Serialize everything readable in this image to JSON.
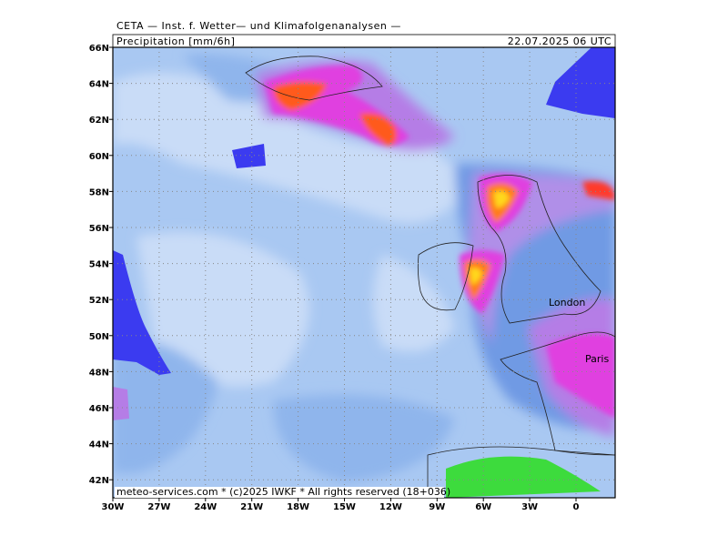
{
  "header": {
    "title": "CETA — Inst. f. Wetter— und Klimafolgenanalysen —",
    "parameter": "Precipitation [mm/6h]",
    "valid_time": "22.07.2025 06 UTC"
  },
  "map": {
    "lat_labels": [
      "66N",
      "64N",
      "62N",
      "60N",
      "58N",
      "56N",
      "54N",
      "52N",
      "50N",
      "48N",
      "46N",
      "44N",
      "42N"
    ],
    "lon_labels": [
      "30W",
      "27W",
      "24W",
      "21W",
      "18W",
      "15W",
      "12W",
      "9W",
      "6W",
      "3W",
      "0"
    ],
    "cities": [
      "London",
      "Paris"
    ]
  },
  "footer": {
    "credit": "meteo-services.com * (c)2025 IWKF * All rights reserved (18+036)"
  }
}
